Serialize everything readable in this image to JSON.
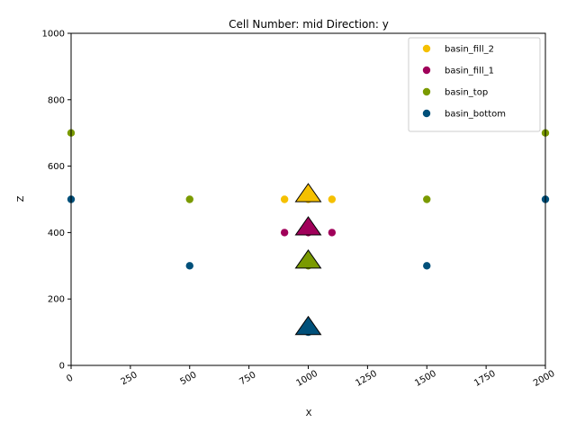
{
  "chart_data": {
    "type": "scatter",
    "title": "Cell Number: mid Direction: y",
    "xlabel": "X",
    "ylabel": "Z",
    "xlim": [
      0,
      2000
    ],
    "ylim": [
      0,
      1000
    ],
    "xticks": [
      0,
      250,
      500,
      750,
      1000,
      1250,
      1500,
      1750,
      2000
    ],
    "yticks": [
      0,
      200,
      400,
      600,
      800,
      1000
    ],
    "xtick_rotation_deg": 30,
    "grid": false,
    "legend_location": "top-right",
    "series": [
      {
        "name": "basin_fill_2",
        "color": "#f5c000",
        "points": [
          [
            900,
            500
          ],
          [
            1100,
            500
          ],
          [
            1000,
            500
          ]
        ],
        "marker_point": [
          1000,
          520
        ]
      },
      {
        "name": "basin_fill_1",
        "color": "#a0005a",
        "points": [
          [
            900,
            400
          ],
          [
            1100,
            400
          ],
          [
            1000,
            400
          ]
        ],
        "marker_point": [
          1000,
          420
        ]
      },
      {
        "name": "basin_top",
        "color": "#7a9a00",
        "points": [
          [
            0,
            700
          ],
          [
            500,
            500
          ],
          [
            1000,
            300
          ],
          [
            1500,
            500
          ],
          [
            2000,
            700
          ]
        ],
        "marker_point": [
          1000,
          320
        ]
      },
      {
        "name": "basin_bottom",
        "color": "#00507a",
        "points": [
          [
            0,
            500
          ],
          [
            500,
            300
          ],
          [
            1000,
            100
          ],
          [
            1500,
            300
          ],
          [
            2000,
            500
          ]
        ],
        "marker_point": [
          1000,
          120
        ]
      }
    ]
  }
}
